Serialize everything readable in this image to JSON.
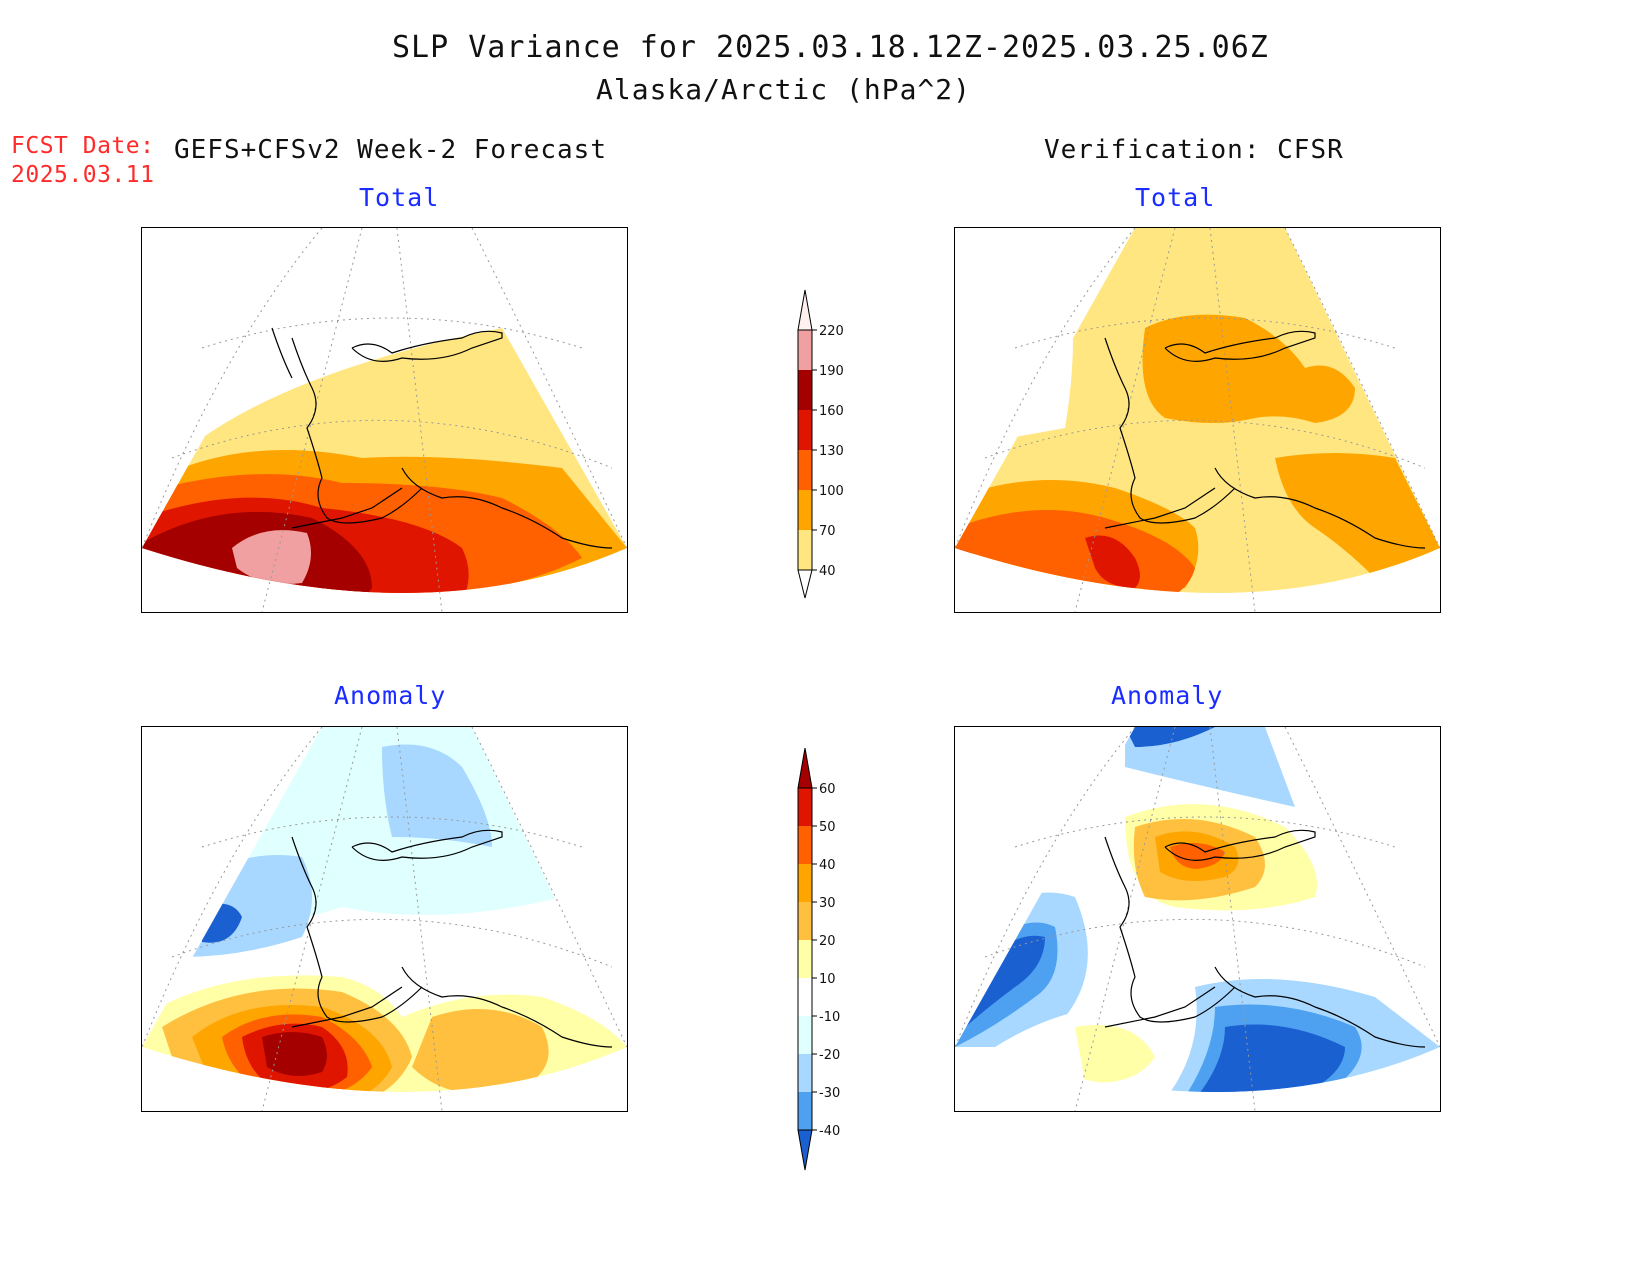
{
  "title": "SLP Variance for 2025.03.18.12Z-2025.03.25.06Z",
  "subtitle": "Alaska/Arctic (hPa^2)",
  "fcst_date_label": "FCST Date:",
  "fcst_date": "2025.03.11",
  "forecast_heading": "GEFS+CFSv2 Week-2 Forecast",
  "verification_heading": "Verification: CFSR",
  "panels": {
    "fcst_total": "Total",
    "verif_total": "Total",
    "fcst_anomaly": "Anomaly",
    "verif_anomaly": "Anomaly"
  },
  "colorbars": {
    "total": {
      "levels": [
        "40",
        "70",
        "100",
        "130",
        "160",
        "190",
        "220"
      ],
      "colors": [
        "#ffe680",
        "#ffa500",
        "#ff6000",
        "#e01500",
        "#a50000",
        "#f0a0a0",
        "#fff0f0"
      ]
    },
    "anomaly": {
      "levels": [
        "60",
        "50",
        "40",
        "30",
        "20",
        "10",
        "-10",
        "-20",
        "-30",
        "-40"
      ],
      "colors": [
        "#a50000",
        "#e01500",
        "#ff6000",
        "#ffa500",
        "#ffc040",
        "#ffffa8",
        "#ffffff",
        "#e0ffff",
        "#a8d8ff",
        "#4ea0f0",
        "#1a60d0"
      ]
    }
  }
}
